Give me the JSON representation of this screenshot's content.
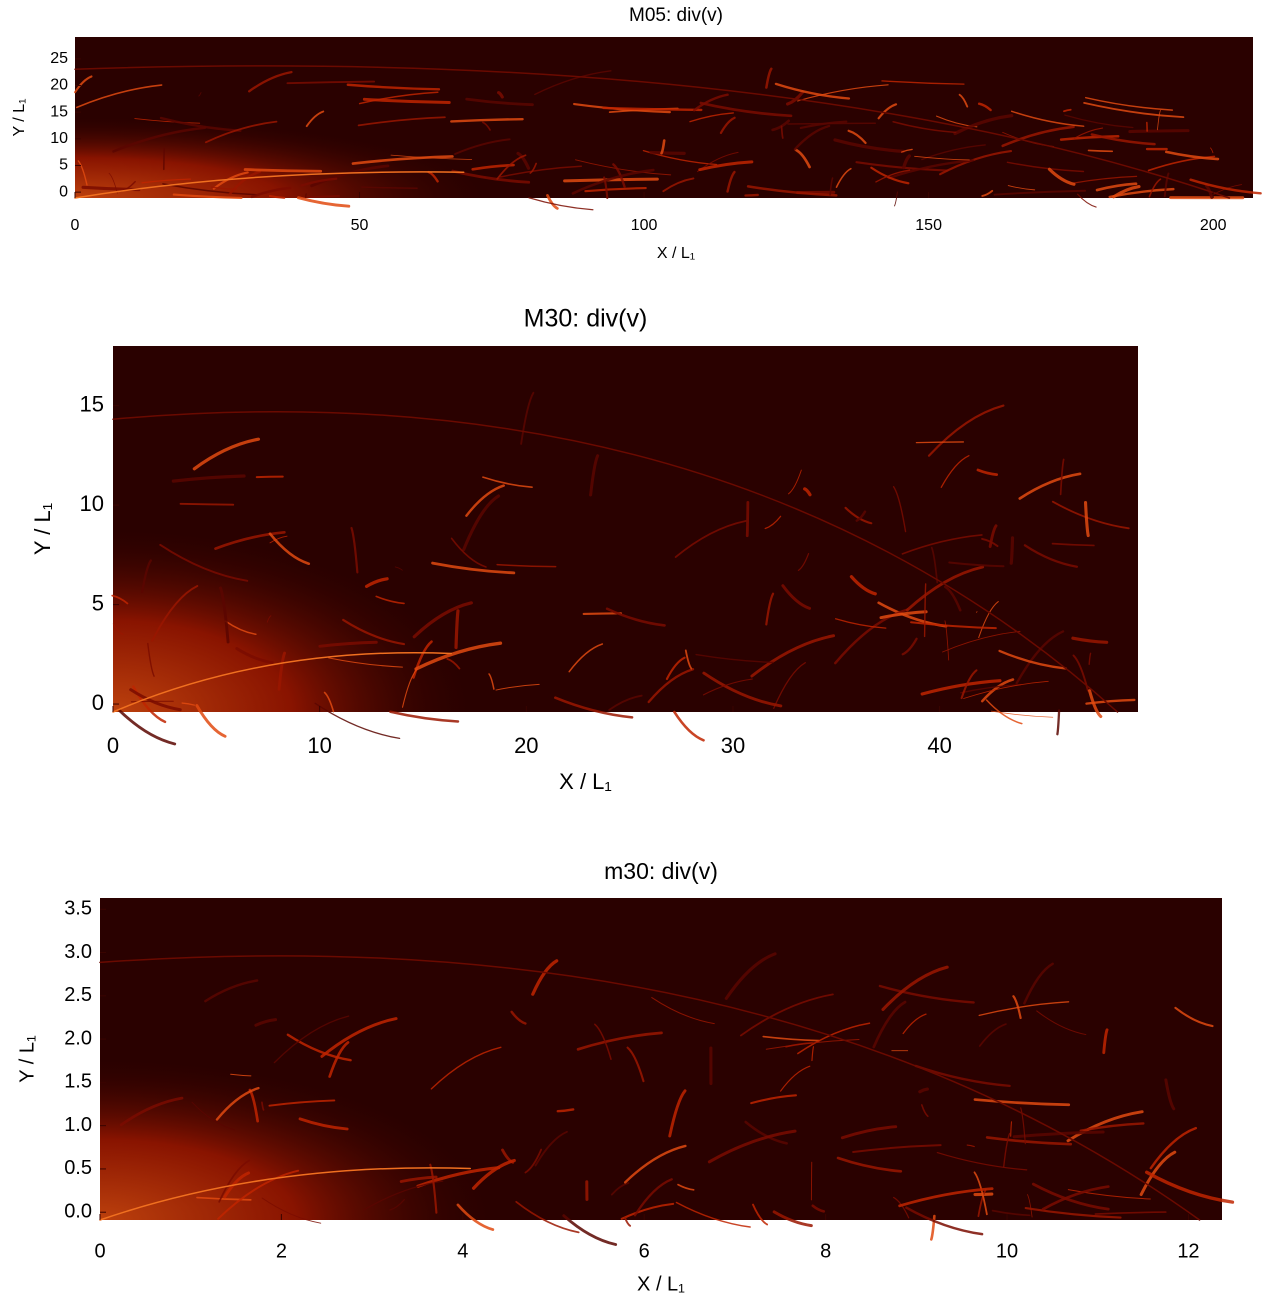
{
  "chart_data": [
    {
      "type": "image",
      "title": "M05: div(v)",
      "xlabel": "X / L₁",
      "ylabel": "Y / L₁",
      "xlim": [
        0,
        207
      ],
      "ylim": [
        -1.1,
        29.1
      ],
      "xticks": [
        0,
        50,
        100,
        150,
        200
      ],
      "yticks": [
        0,
        5,
        10,
        15,
        20,
        25
      ]
    },
    {
      "type": "image",
      "title": "M30: div(v)",
      "xlabel": "X / L₁",
      "ylabel": "Y / L₁",
      "xlim": [
        0,
        49.6
      ],
      "ylim": [
        -0.4,
        18
      ],
      "xticks": [
        0,
        10,
        20,
        30,
        40
      ],
      "yticks": [
        0,
        5,
        10,
        15
      ]
    },
    {
      "type": "image",
      "title": "m30: div(v)",
      "xlabel": "X / L₁",
      "ylabel": "Y / L₁",
      "xlim": [
        0,
        12.37
      ],
      "ylim": [
        -0.09,
        3.63
      ],
      "xticks": [
        0,
        2,
        4,
        6,
        8,
        10,
        12
      ],
      "yticks": [
        {
          "value": 0,
          "label": "0.0"
        },
        0.5,
        {
          "value": 1,
          "label": "1.0"
        },
        1.5,
        {
          "value": 2,
          "label": "2.0"
        },
        2.5,
        {
          "value": 3,
          "label": "3.0"
        },
        3.5
      ]
    }
  ]
}
